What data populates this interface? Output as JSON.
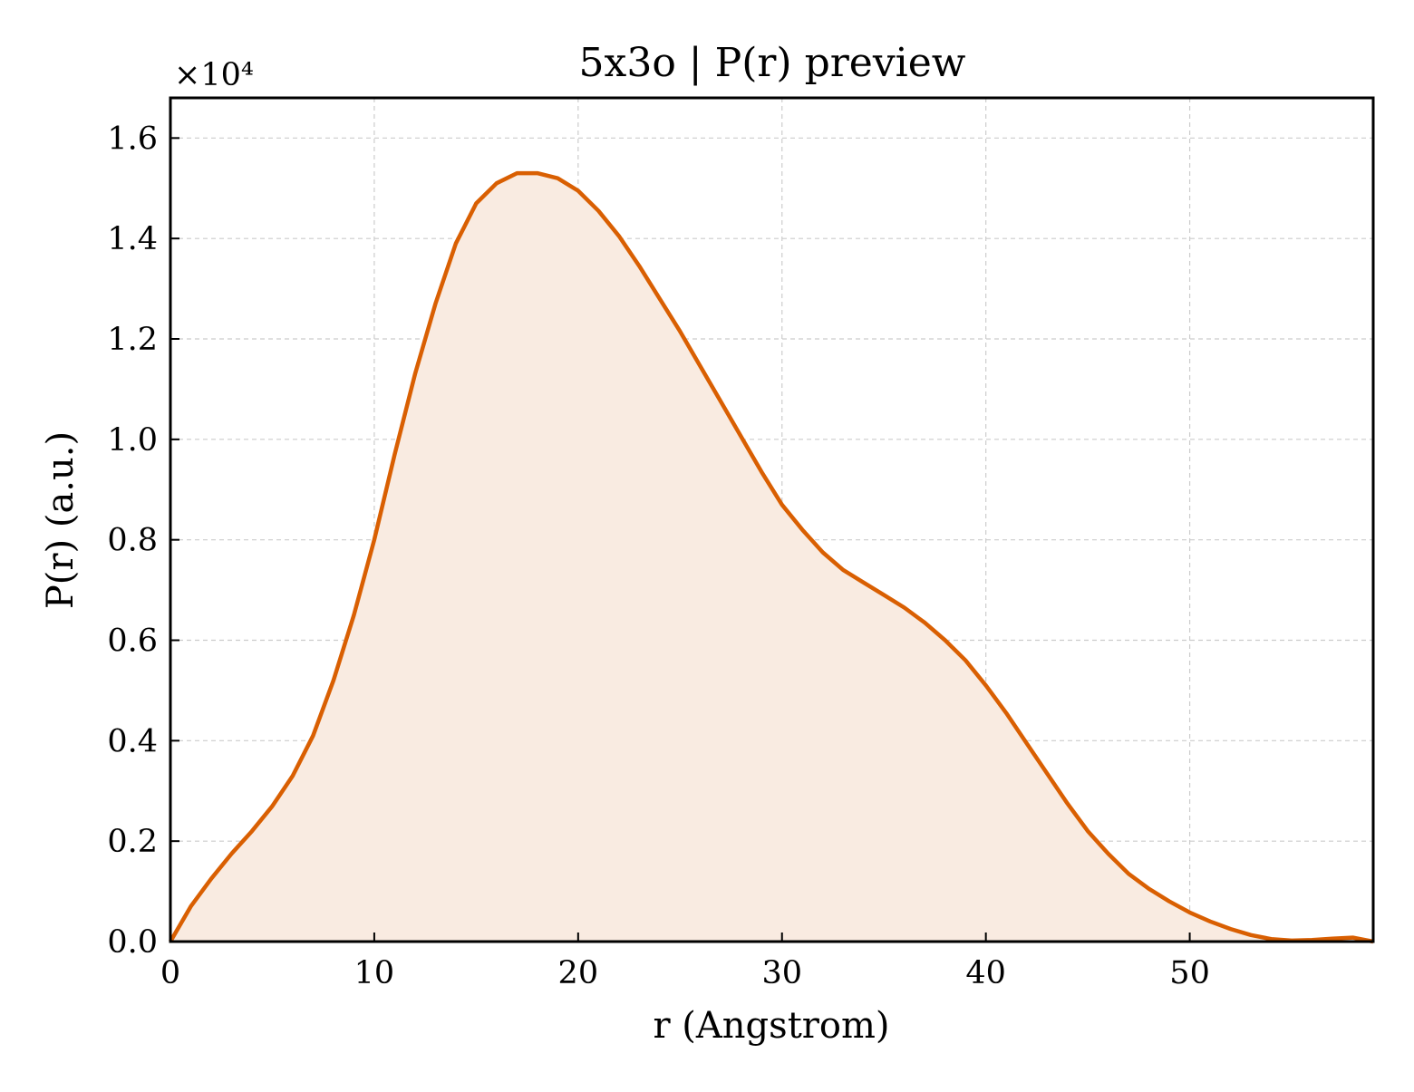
{
  "chart_data": {
    "type": "area",
    "title": "5x3o | P(r) preview",
    "xlabel": "r (Angstrom)",
    "ylabel": "P(r) (a.u.)",
    "y_multiplier": "×10⁴",
    "xlim": [
      0,
      59
    ],
    "ylim": [
      0,
      16800
    ],
    "x_ticks": [
      0,
      10,
      20,
      30,
      40,
      50
    ],
    "x_tick_labels": [
      "0",
      "10",
      "20",
      "30",
      "40",
      "50"
    ],
    "y_ticks": [
      0,
      2000,
      4000,
      6000,
      8000,
      10000,
      12000,
      14000,
      16000
    ],
    "y_tick_labels": [
      "0.0",
      "0.2",
      "0.4",
      "0.6",
      "0.8",
      "1.0",
      "1.2",
      "1.4",
      "1.6"
    ],
    "grid": true,
    "series": [
      {
        "color": "#d95f02",
        "fill_color": "#f9ebe1",
        "x": [
          0,
          1,
          2,
          3,
          4,
          5,
          6,
          7,
          8,
          9,
          10,
          11,
          12,
          13,
          14,
          15,
          16,
          17,
          18,
          19,
          20,
          21,
          22,
          23,
          24,
          25,
          26,
          27,
          28,
          29,
          30,
          31,
          32,
          33,
          34,
          35,
          36,
          37,
          38,
          39,
          40,
          41,
          42,
          43,
          44,
          45,
          46,
          47,
          48,
          49,
          50,
          51,
          52,
          53,
          54,
          55,
          56,
          57,
          58,
          59
        ],
        "y": [
          0,
          700,
          1250,
          1750,
          2200,
          2700,
          3300,
          4100,
          5200,
          6500,
          8000,
          9700,
          11300,
          12700,
          13900,
          14700,
          15100,
          15300,
          15300,
          15200,
          14950,
          14550,
          14050,
          13450,
          12800,
          12150,
          11450,
          10750,
          10050,
          9350,
          8700,
          8200,
          7750,
          7400,
          7150,
          6900,
          6650,
          6350,
          6000,
          5600,
          5100,
          4550,
          3950,
          3350,
          2750,
          2200,
          1750,
          1350,
          1050,
          800,
          580,
          400,
          250,
          130,
          50,
          20,
          30,
          60,
          80,
          0
        ]
      }
    ]
  }
}
